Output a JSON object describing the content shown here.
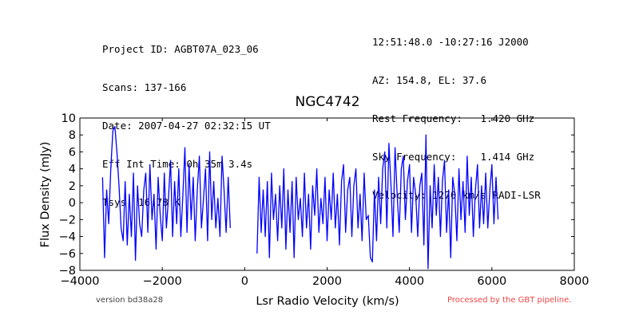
{
  "header": {
    "left_lines": [
      "Project ID: AGBT07A_023_06",
      "Scans: 137-166",
      "Date: 2007-04-27 02:32:15 UT",
      "Eff Int Time: 0h 35m 3.4s",
      "Tsys: 16.78 K"
    ],
    "right_lines": [
      "12:51:48.0 -10:27:16 J2000",
      "AZ: 154.8, EL: 37.6",
      "Rest Frequency:   1.420 GHz",
      "Sky Frequency:    1.414 GHz",
      "Velocity: 1270 km/s RADI-LSR"
    ]
  },
  "footer": {
    "version": "version bd38a28",
    "pipeline": "Processed by the GBT pipeline."
  },
  "chart_data": {
    "type": "line",
    "title": "NGC4742",
    "xlabel": "Lsr Radio Velocity (km/s)",
    "ylabel": "Flux Density (mJy)",
    "xlim": [
      -4000,
      8000
    ],
    "ylim": [
      -8,
      10
    ],
    "x_ticks": [
      -4000,
      -2000,
      0,
      2000,
      4000,
      6000,
      8000
    ],
    "y_ticks": [
      -8,
      -6,
      -4,
      -2,
      0,
      2,
      4,
      6,
      8,
      10
    ],
    "grid": false,
    "line_color": "#0000ff",
    "series": [
      {
        "segments": [
          {
            "x": [
              -3450,
              -3400,
              -3350,
              -3300,
              -3250,
              -3200,
              -3150,
              -3100,
              -3050,
              -3000,
              -2950,
              -2900,
              -2850,
              -2800,
              -2750,
              -2700,
              -2650,
              -2600,
              -2550,
              -2500,
              -2450,
              -2400,
              -2350,
              -2300,
              -2250,
              -2200,
              -2150,
              -2100,
              -2050,
              -2000,
              -1950,
              -1900,
              -1850,
              -1800,
              -1750,
              -1700,
              -1650,
              -1600,
              -1550,
              -1500,
              -1450,
              -1400,
              -1350,
              -1300,
              -1250,
              -1200,
              -1150,
              -1100,
              -1050,
              -1000,
              -950,
              -900,
              -850,
              -800,
              -750,
              -700,
              -650,
              -600,
              -550,
              -500,
              -450,
              -400,
              -350
            ],
            "y": [
              3.0,
              -6.5,
              1.5,
              -2.5,
              4.0,
              8.5,
              9.0,
              6.0,
              2.0,
              -3.0,
              -4.5,
              2.5,
              -5.0,
              1.0,
              -4.0,
              3.5,
              -6.8,
              2.0,
              -2.5,
              -4.0,
              1.5,
              3.5,
              -3.5,
              4.5,
              -2.0,
              1.0,
              -5.5,
              3.0,
              -1.5,
              -4.5,
              3.5,
              -3.0,
              0.5,
              5.0,
              -4.0,
              2.5,
              -2.5,
              4.0,
              -4.0,
              1.0,
              6.5,
              -3.5,
              4.5,
              -2.0,
              3.0,
              -4.5,
              1.5,
              5.5,
              -3.0,
              0.5,
              4.0,
              -4.5,
              6.0,
              -2.0,
              2.5,
              -3.0,
              0.5,
              -4.0,
              5.5,
              1.5,
              -3.5,
              3.0,
              -3.0
            ]
          },
          {
            "x": [
              300,
              350,
              400,
              450,
              500,
              550,
              600,
              650,
              700,
              750,
              800,
              850,
              900,
              950,
              1000,
              1050,
              1100,
              1150,
              1200,
              1250,
              1300,
              1350,
              1400,
              1450,
              1500,
              1550,
              1600,
              1650,
              1700,
              1750,
              1800,
              1850,
              1900,
              1950,
              2000,
              2050,
              2100,
              2150,
              2200,
              2250,
              2300,
              2350,
              2400,
              2450,
              2500,
              2550,
              2600,
              2650,
              2700,
              2750,
              2800,
              2850,
              2900,
              2950,
              3000,
              3050,
              3100,
              3150,
              3200,
              3250,
              3300,
              3350,
              3400,
              3450,
              3500,
              3550,
              3600,
              3650,
              3700,
              3750,
              3800,
              3850,
              3900,
              3950,
              4000,
              4050,
              4100,
              4150,
              4200,
              4250,
              4300,
              4350,
              4400,
              4450,
              4500,
              4550,
              4600,
              4650,
              4700,
              4750,
              4800,
              4850,
              4900,
              4950,
              5000,
              5050,
              5100,
              5150,
              5200,
              5250,
              5300,
              5350,
              5400,
              5450,
              5500,
              5550,
              5600,
              5650,
              5700,
              5750,
              5800,
              5850,
              5900,
              5950,
              6000,
              6050,
              6100,
              6150
            ],
            "y": [
              -6.0,
              3.0,
              -3.5,
              1.5,
              -4.0,
              2.5,
              -6.5,
              3.5,
              -2.0,
              1.0,
              -4.5,
              2.0,
              -3.0,
              4.0,
              -5.5,
              1.5,
              -3.5,
              2.5,
              -6.5,
              3.0,
              -2.0,
              0.5,
              -4.0,
              3.5,
              -3.0,
              1.0,
              -5.5,
              2.0,
              -1.5,
              4.0,
              -3.5,
              0.5,
              -2.5,
              3.0,
              -4.5,
              1.5,
              -2.0,
              3.5,
              -3.0,
              1.0,
              -5.0,
              2.5,
              4.5,
              -3.5,
              1.5,
              3.0,
              -4.0,
              2.0,
              4.0,
              -3.0,
              1.0,
              -4.5,
              3.5,
              -2.0,
              -1.5,
              -6.5,
              -7.0,
              1.5,
              -4.5,
              3.0,
              -2.5,
              4.0,
              6.0,
              -3.0,
              7.0,
              2.0,
              -4.0,
              6.5,
              1.0,
              -3.5,
              4.0,
              5.5,
              -2.0,
              2.5,
              4.5,
              -3.5,
              3.0,
              1.0,
              -4.0,
              2.0,
              3.5,
              -5.0,
              8.0,
              -7.8,
              2.0,
              -3.0,
              4.5,
              -1.5,
              3.0,
              -4.0,
              2.5,
              5.0,
              -3.5,
              1.5,
              -6.5,
              3.0,
              1.0,
              -4.5,
              4.0,
              -2.0,
              2.5,
              -3.5,
              5.5,
              -1.5,
              3.0,
              -4.0,
              1.5,
              4.5,
              -3.0,
              2.0,
              -2.5,
              3.5,
              -3.0,
              1.5,
              4.5,
              -2.5,
              3.0,
              -2.0
            ]
          }
        ]
      }
    ]
  }
}
